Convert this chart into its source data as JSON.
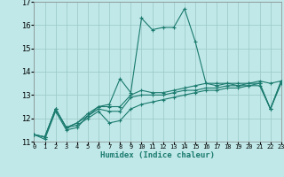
{
  "xlabel": "Humidex (Indice chaleur)",
  "bg_color": "#c0e8e8",
  "grid_color": "#a0cccc",
  "line_color": "#1a7a6e",
  "xlim": [
    0,
    23
  ],
  "ylim": [
    11,
    17
  ],
  "yticks": [
    11,
    12,
    13,
    14,
    15,
    16,
    17
  ],
  "xticks": [
    0,
    1,
    2,
    3,
    4,
    5,
    6,
    7,
    8,
    9,
    10,
    11,
    12,
    13,
    14,
    15,
    16,
    17,
    18,
    19,
    20,
    21,
    22,
    23
  ],
  "series": [
    [
      11.3,
      11.1,
      12.3,
      11.5,
      11.6,
      12.1,
      12.5,
      12.6,
      13.7,
      13.1,
      16.3,
      15.8,
      15.9,
      15.9,
      16.7,
      15.3,
      13.5,
      13.4,
      13.5,
      13.4,
      13.5,
      13.5,
      12.4,
      13.5
    ],
    [
      11.3,
      11.2,
      12.4,
      11.6,
      11.8,
      12.2,
      12.5,
      12.5,
      12.5,
      13.0,
      13.2,
      13.1,
      13.1,
      13.2,
      13.3,
      13.4,
      13.5,
      13.5,
      13.5,
      13.5,
      13.5,
      13.6,
      13.5,
      13.6
    ],
    [
      11.3,
      11.2,
      12.4,
      11.6,
      11.8,
      12.1,
      12.4,
      12.3,
      12.3,
      12.9,
      13.0,
      13.0,
      13.0,
      13.1,
      13.2,
      13.2,
      13.3,
      13.3,
      13.4,
      13.4,
      13.4,
      13.5,
      12.4,
      13.6
    ],
    [
      11.3,
      11.2,
      12.4,
      11.6,
      11.7,
      12.0,
      12.3,
      11.8,
      11.9,
      12.4,
      12.6,
      12.7,
      12.8,
      12.9,
      13.0,
      13.1,
      13.2,
      13.2,
      13.3,
      13.3,
      13.4,
      13.4,
      12.4,
      13.6
    ]
  ]
}
